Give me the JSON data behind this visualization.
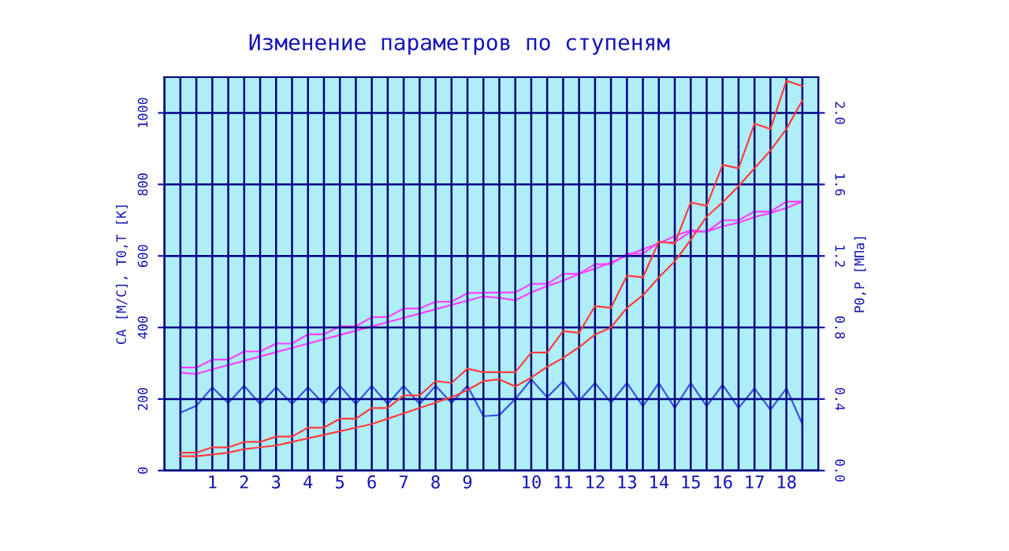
{
  "chart_data": {
    "type": "line",
    "title": "Изменение параметров по ступеням",
    "ylabel": "CA [M/C], T0,T [K]",
    "y2label": "P0,P [MПа]",
    "categories": [
      null,
      null,
      "1",
      null,
      "2",
      null,
      "3",
      null,
      "4",
      null,
      "5",
      null,
      "6",
      null,
      "7",
      null,
      "8",
      null,
      "9",
      null,
      null,
      null,
      "10",
      null,
      "11",
      null,
      "12",
      null,
      "13",
      null,
      "14",
      null,
      "15",
      null,
      "16",
      null,
      "17",
      null,
      "18",
      null
    ],
    "series": [
      {
        "color": "#3c50e6",
        "values": [
          162,
          181,
          233,
          189,
          237,
          186,
          233,
          186,
          233,
          186,
          237,
          186,
          237,
          186,
          237,
          186,
          237,
          189,
          237,
          152,
          155,
          200,
          255,
          205,
          250,
          195,
          245,
          190,
          245,
          180,
          245,
          175,
          245,
          180,
          240,
          175,
          230,
          170,
          230,
          130
        ]
      },
      {
        "color": "#ff40ff",
        "values": [
          288,
          288,
          310,
          310,
          333,
          333,
          355,
          355,
          381,
          381,
          403,
          403,
          429,
          429,
          453,
          453,
          472,
          472,
          496,
          497,
          498,
          498,
          522,
          522,
          550,
          550,
          577,
          577,
          606,
          606,
          638,
          638,
          668,
          668,
          700,
          700,
          724,
          724,
          752,
          752
        ]
      },
      {
        "color": "#ff40ff",
        "values": [
          274,
          270,
          283,
          295,
          307,
          319,
          331,
          343,
          355,
          367,
          379,
          391,
          403,
          415,
          427,
          439,
          451,
          463,
          475,
          487,
          483,
          476,
          498,
          516,
          531,
          550,
          564,
          582,
          601,
          619,
          635,
          656,
          672,
          668,
          683,
          693,
          709,
          720,
          734,
          752
        ]
      },
      {
        "color": "#ff3c3c",
        "axis": "y2",
        "values": [
          0.1,
          0.1,
          0.13,
          0.13,
          0.16,
          0.16,
          0.19,
          0.19,
          0.24,
          0.24,
          0.29,
          0.29,
          0.35,
          0.35,
          0.42,
          0.42,
          0.5,
          0.49,
          0.57,
          0.55,
          0.55,
          0.55,
          0.66,
          0.66,
          0.78,
          0.77,
          0.92,
          0.91,
          1.09,
          1.08,
          1.28,
          1.27,
          1.5,
          1.48,
          1.71,
          1.69,
          1.94,
          1.91,
          2.18,
          2.15
        ]
      },
      {
        "color": "#ff3c3c",
        "axis": "y2",
        "values": [
          0.08,
          0.08,
          0.09,
          0.1,
          0.12,
          0.13,
          0.14,
          0.16,
          0.18,
          0.2,
          0.22,
          0.24,
          0.26,
          0.29,
          0.32,
          0.35,
          0.38,
          0.41,
          0.45,
          0.5,
          0.51,
          0.47,
          0.52,
          0.58,
          0.63,
          0.69,
          0.76,
          0.8,
          0.91,
          0.98,
          1.08,
          1.17,
          1.29,
          1.42,
          1.5,
          1.59,
          1.69,
          1.79,
          1.91,
          2.07
        ]
      }
    ],
    "ylim": [
      0,
      1100
    ],
    "yticks": [
      0,
      200,
      400,
      600,
      800,
      1000
    ],
    "y2lim": [
      0,
      2.2
    ],
    "y2ticks": [
      {
        "value": 0,
        "label": "0.0"
      },
      {
        "value": 0.4,
        "label": "0.4"
      },
      {
        "value": 0.8,
        "label": "0.8"
      },
      {
        "value": 1.2,
        "label": "1.2"
      },
      {
        "value": 1.6,
        "label": "1.6"
      },
      {
        "value": 2.0,
        "label": "2.0"
      }
    ],
    "grid": true,
    "marker": "none",
    "line_style": "solid"
  }
}
